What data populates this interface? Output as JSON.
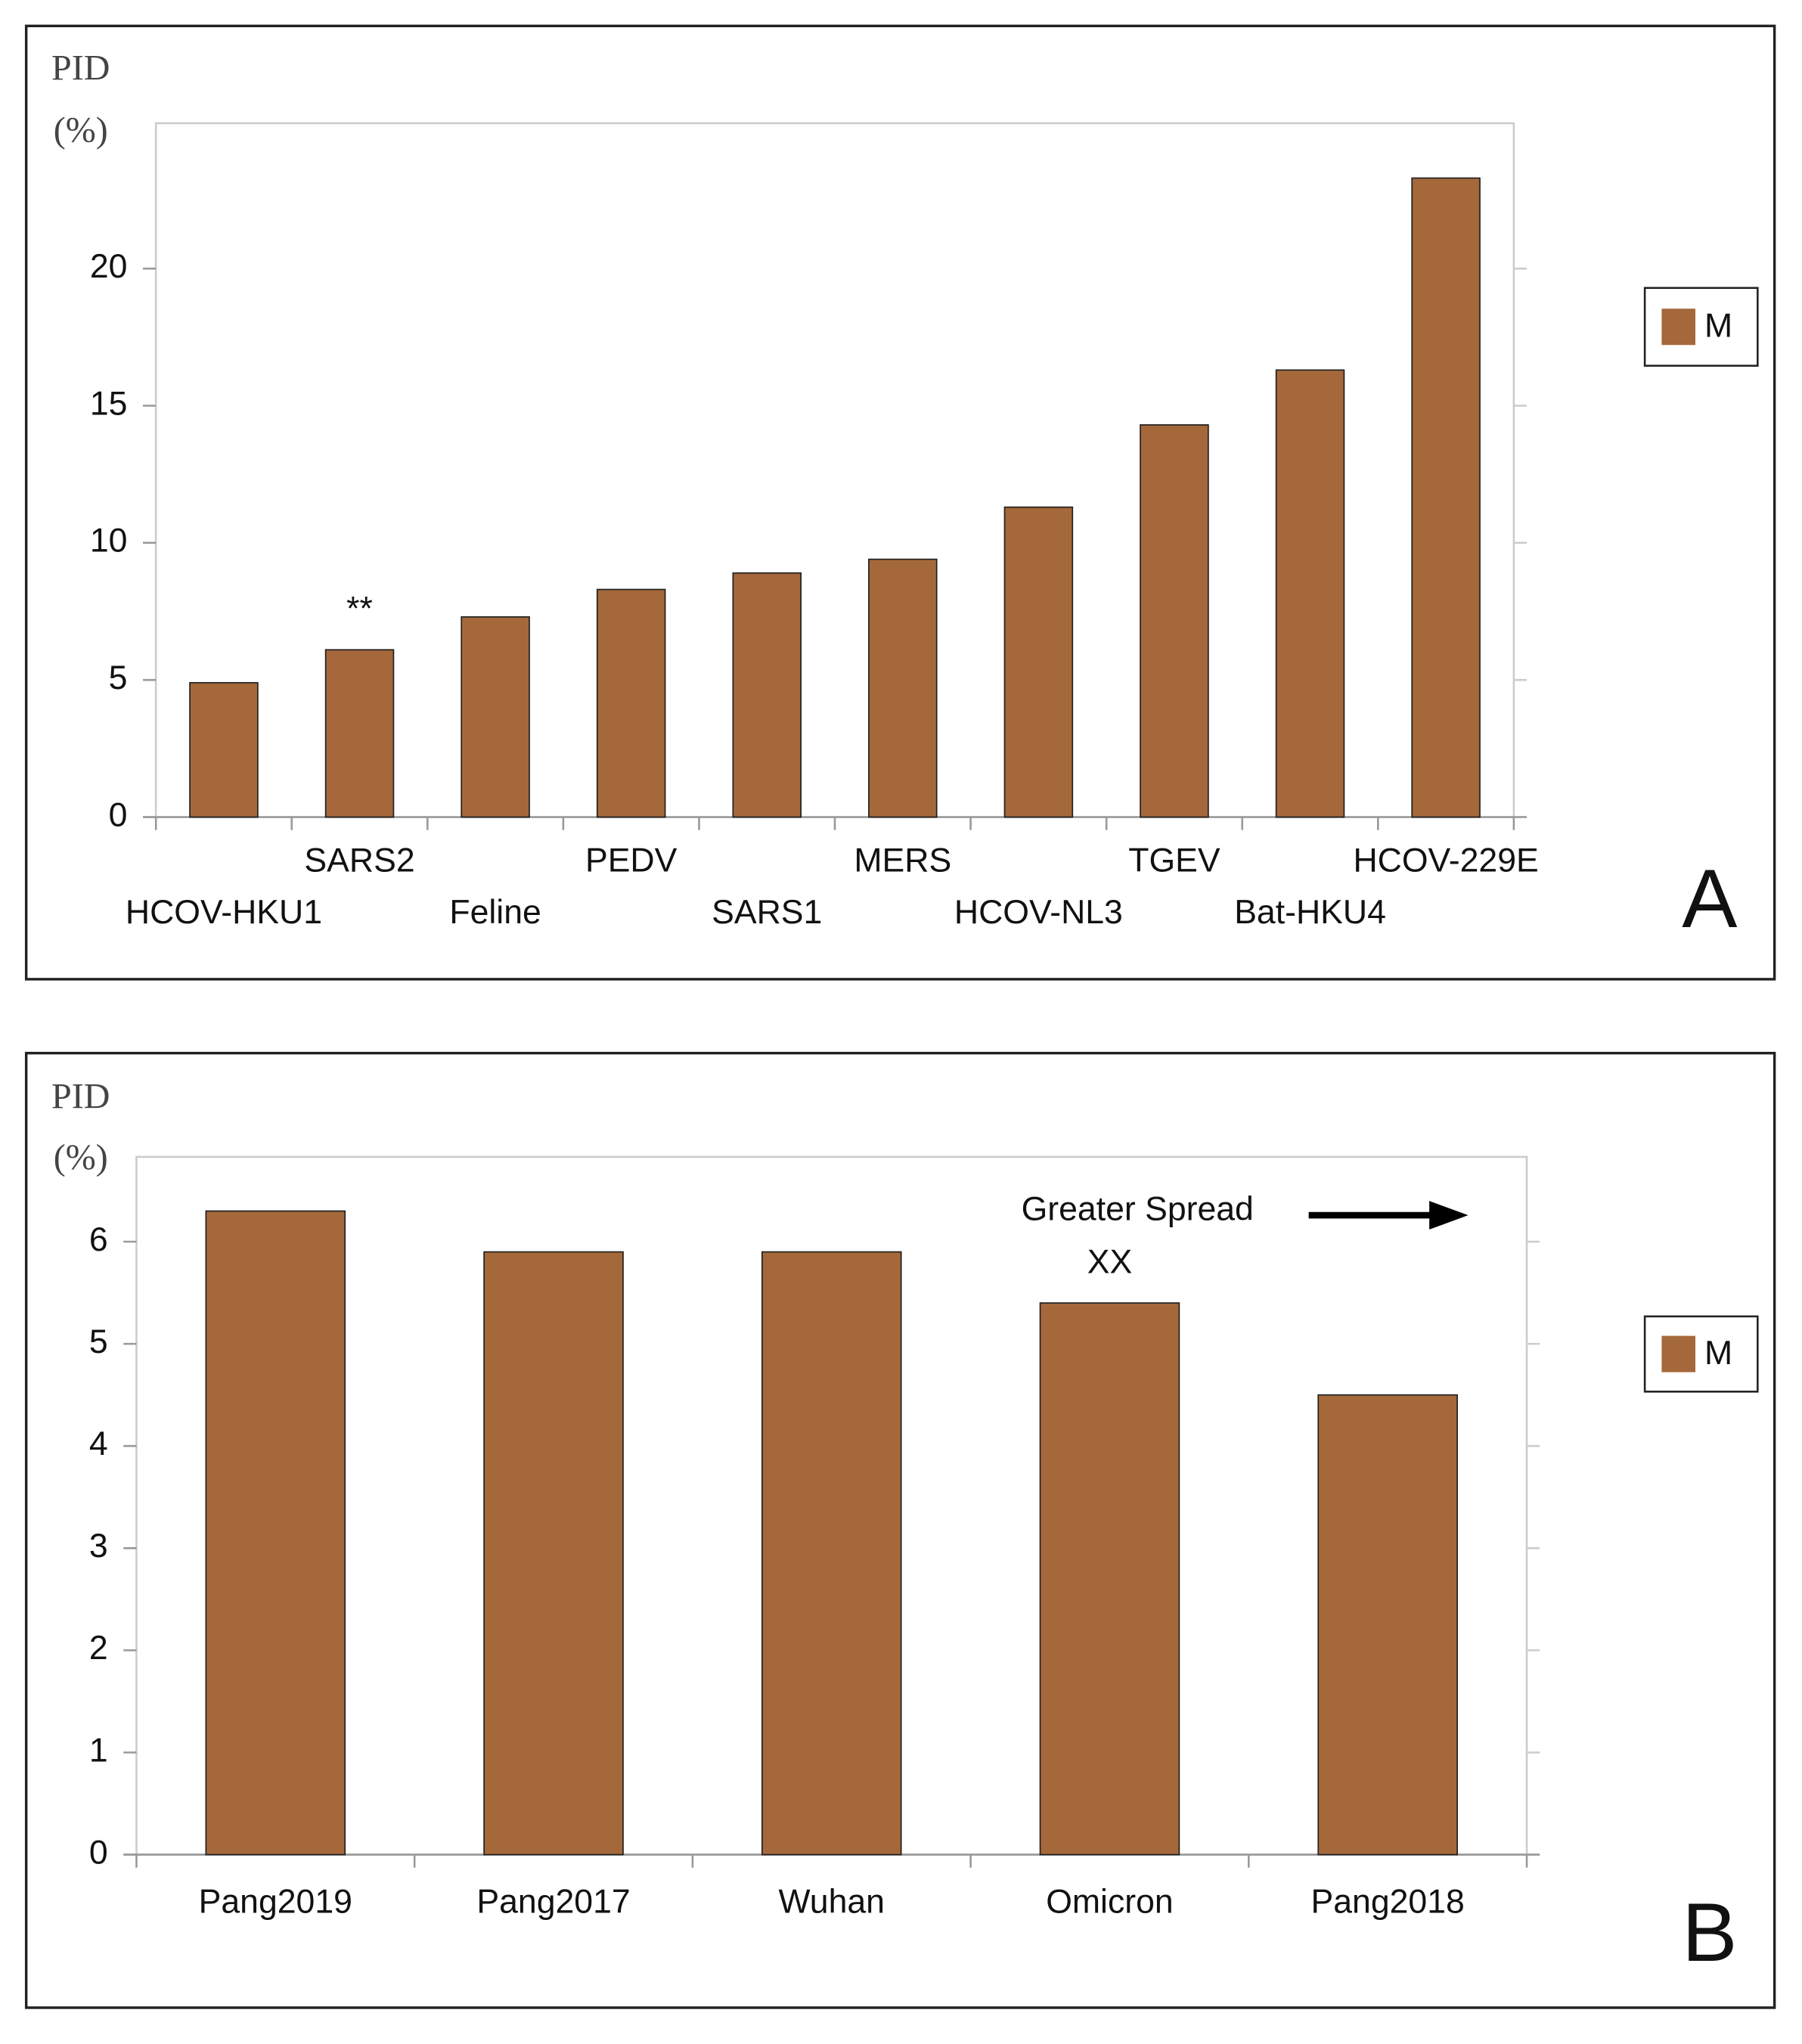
{
  "chart_data": [
    {
      "type": "bar",
      "ylabel": "PID",
      "yunit": "(%)",
      "categories": [
        "HCOV-HKU1",
        "SARS2",
        "Feline",
        "PEDV",
        "SARS1",
        "MERS",
        "HCOV-NL3",
        "TGEV",
        "Bat-HKU4",
        "HCOV-229E"
      ],
      "series": [
        {
          "name": "M",
          "color": "#a5683a",
          "values": [
            4.9,
            6.1,
            7.3,
            8.3,
            8.9,
            9.4,
            11.3,
            14.3,
            16.3,
            23.3
          ]
        }
      ],
      "ylim": [
        0,
        25.3
      ],
      "yticks": [
        0,
        5,
        10,
        15,
        20
      ],
      "grid": false,
      "legend": "right",
      "annotations": [
        {
          "text": "**",
          "category": "SARS2"
        }
      ],
      "panel_label": "A"
    },
    {
      "type": "bar",
      "ylabel": "PID",
      "yunit": "(%)",
      "categories": [
        "Pang2019",
        "Pang2017",
        "Wuhan",
        "Omicron",
        "Pang2018"
      ],
      "series": [
        {
          "name": "M",
          "color": "#a5683a",
          "values": [
            6.3,
            5.9,
            5.9,
            5.4,
            4.5
          ]
        }
      ],
      "ylim": [
        0,
        6.83
      ],
      "yticks": [
        0,
        1,
        2,
        3,
        4,
        5,
        6
      ],
      "grid": false,
      "legend": "right",
      "annotations": [
        {
          "text": "XX",
          "category": "Omicron"
        },
        {
          "text": "Greater Spread"
        }
      ],
      "panel_label": "B"
    }
  ]
}
